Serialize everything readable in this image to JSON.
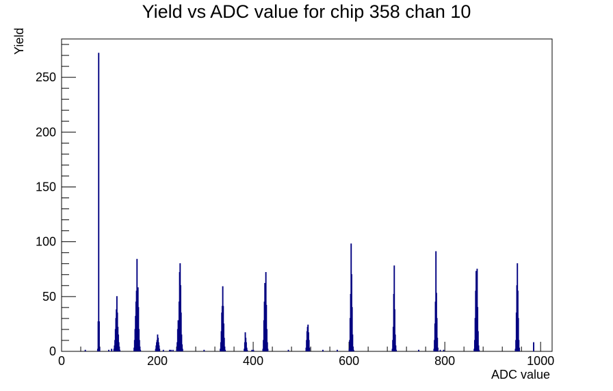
{
  "chart_data": {
    "type": "histogram",
    "title": "Yield vs ADC value for chip 358 chan 10",
    "xlabel": "ADC value",
    "ylabel": "Yield",
    "xlim": [
      0,
      1024
    ],
    "ylim": [
      0,
      285
    ],
    "x_ticks": [
      0,
      200,
      400,
      600,
      800,
      1000
    ],
    "y_ticks": [
      0,
      50,
      100,
      150,
      200,
      250
    ],
    "bin_width": 1,
    "grid": false,
    "line_color": "#000080",
    "bins": [
      {
        "x": 49,
        "y": 1
      },
      {
        "x": 75,
        "y": 2
      },
      {
        "x": 76,
        "y": 27
      },
      {
        "x": 77,
        "y": 272
      },
      {
        "x": 78,
        "y": 27
      },
      {
        "x": 79,
        "y": 3
      },
      {
        "x": 98,
        "y": 1
      },
      {
        "x": 104,
        "y": 2
      },
      {
        "x": 109,
        "y": 2
      },
      {
        "x": 110,
        "y": 5
      },
      {
        "x": 111,
        "y": 10
      },
      {
        "x": 112,
        "y": 20
      },
      {
        "x": 113,
        "y": 30
      },
      {
        "x": 114,
        "y": 38
      },
      {
        "x": 115,
        "y": 50
      },
      {
        "x": 116,
        "y": 35
      },
      {
        "x": 117,
        "y": 22
      },
      {
        "x": 118,
        "y": 15
      },
      {
        "x": 119,
        "y": 8
      },
      {
        "x": 120,
        "y": 4
      },
      {
        "x": 121,
        "y": 1
      },
      {
        "x": 151,
        "y": 3
      },
      {
        "x": 152,
        "y": 10
      },
      {
        "x": 153,
        "y": 20
      },
      {
        "x": 154,
        "y": 32
      },
      {
        "x": 155,
        "y": 45
      },
      {
        "x": 156,
        "y": 55
      },
      {
        "x": 157,
        "y": 84
      },
      {
        "x": 158,
        "y": 35
      },
      {
        "x": 159,
        "y": 58
      },
      {
        "x": 160,
        "y": 40
      },
      {
        "x": 161,
        "y": 20
      },
      {
        "x": 162,
        "y": 10
      },
      {
        "x": 163,
        "y": 4
      },
      {
        "x": 164,
        "y": 1
      },
      {
        "x": 196,
        "y": 2
      },
      {
        "x": 197,
        "y": 5
      },
      {
        "x": 198,
        "y": 8
      },
      {
        "x": 199,
        "y": 10
      },
      {
        "x": 200,
        "y": 15
      },
      {
        "x": 201,
        "y": 12
      },
      {
        "x": 202,
        "y": 8
      },
      {
        "x": 203,
        "y": 5
      },
      {
        "x": 204,
        "y": 2
      },
      {
        "x": 212,
        "y": 1
      },
      {
        "x": 225,
        "y": 1
      },
      {
        "x": 228,
        "y": 1
      },
      {
        "x": 232,
        "y": 1
      },
      {
        "x": 240,
        "y": 2
      },
      {
        "x": 241,
        "y": 8
      },
      {
        "x": 242,
        "y": 20
      },
      {
        "x": 243,
        "y": 28
      },
      {
        "x": 244,
        "y": 26
      },
      {
        "x": 245,
        "y": 45
      },
      {
        "x": 246,
        "y": 72
      },
      {
        "x": 247,
        "y": 80
      },
      {
        "x": 248,
        "y": 60
      },
      {
        "x": 249,
        "y": 35
      },
      {
        "x": 250,
        "y": 15
      },
      {
        "x": 251,
        "y": 6
      },
      {
        "x": 252,
        "y": 2
      },
      {
        "x": 297,
        "y": 1
      },
      {
        "x": 331,
        "y": 2
      },
      {
        "x": 332,
        "y": 8
      },
      {
        "x": 333,
        "y": 18
      },
      {
        "x": 334,
        "y": 35
      },
      {
        "x": 335,
        "y": 41
      },
      {
        "x": 336,
        "y": 59
      },
      {
        "x": 337,
        "y": 41
      },
      {
        "x": 338,
        "y": 25
      },
      {
        "x": 339,
        "y": 12
      },
      {
        "x": 340,
        "y": 4
      },
      {
        "x": 341,
        "y": 1
      },
      {
        "x": 381,
        "y": 2
      },
      {
        "x": 382,
        "y": 8
      },
      {
        "x": 383,
        "y": 17
      },
      {
        "x": 384,
        "y": 12
      },
      {
        "x": 385,
        "y": 8
      },
      {
        "x": 386,
        "y": 3
      },
      {
        "x": 387,
        "y": 1
      },
      {
        "x": 397,
        "y": 1
      },
      {
        "x": 400,
        "y": 1
      },
      {
        "x": 420,
        "y": 2
      },
      {
        "x": 421,
        "y": 10
      },
      {
        "x": 422,
        "y": 28
      },
      {
        "x": 423,
        "y": 45
      },
      {
        "x": 424,
        "y": 62
      },
      {
        "x": 425,
        "y": 50
      },
      {
        "x": 426,
        "y": 72
      },
      {
        "x": 427,
        "y": 42
      },
      {
        "x": 428,
        "y": 20
      },
      {
        "x": 429,
        "y": 8
      },
      {
        "x": 430,
        "y": 2
      },
      {
        "x": 473,
        "y": 1
      },
      {
        "x": 510,
        "y": 3
      },
      {
        "x": 511,
        "y": 10
      },
      {
        "x": 512,
        "y": 18
      },
      {
        "x": 513,
        "y": 22
      },
      {
        "x": 514,
        "y": 24
      },
      {
        "x": 515,
        "y": 17
      },
      {
        "x": 516,
        "y": 10
      },
      {
        "x": 517,
        "y": 3
      },
      {
        "x": 545,
        "y": 1
      },
      {
        "x": 575,
        "y": 1
      },
      {
        "x": 600,
        "y": 2
      },
      {
        "x": 601,
        "y": 10
      },
      {
        "x": 602,
        "y": 30
      },
      {
        "x": 603,
        "y": 52
      },
      {
        "x": 604,
        "y": 98
      },
      {
        "x": 605,
        "y": 70
      },
      {
        "x": 606,
        "y": 40
      },
      {
        "x": 607,
        "y": 15
      },
      {
        "x": 608,
        "y": 4
      },
      {
        "x": 609,
        "y": 1
      },
      {
        "x": 690,
        "y": 2
      },
      {
        "x": 691,
        "y": 10
      },
      {
        "x": 692,
        "y": 22
      },
      {
        "x": 693,
        "y": 52
      },
      {
        "x": 694,
        "y": 78
      },
      {
        "x": 695,
        "y": 38
      },
      {
        "x": 696,
        "y": 15
      },
      {
        "x": 697,
        "y": 5
      },
      {
        "x": 698,
        "y": 1
      },
      {
        "x": 745,
        "y": 1
      },
      {
        "x": 777,
        "y": 2
      },
      {
        "x": 778,
        "y": 10
      },
      {
        "x": 779,
        "y": 25
      },
      {
        "x": 780,
        "y": 45
      },
      {
        "x": 781,
        "y": 91
      },
      {
        "x": 782,
        "y": 53
      },
      {
        "x": 783,
        "y": 30
      },
      {
        "x": 784,
        "y": 12
      },
      {
        "x": 785,
        "y": 3
      },
      {
        "x": 790,
        "y": 1
      },
      {
        "x": 797,
        "y": 1
      },
      {
        "x": 861,
        "y": 2
      },
      {
        "x": 862,
        "y": 10
      },
      {
        "x": 863,
        "y": 30
      },
      {
        "x": 864,
        "y": 55
      },
      {
        "x": 865,
        "y": 73
      },
      {
        "x": 866,
        "y": 60
      },
      {
        "x": 867,
        "y": 75
      },
      {
        "x": 868,
        "y": 40
      },
      {
        "x": 869,
        "y": 18
      },
      {
        "x": 870,
        "y": 5
      },
      {
        "x": 871,
        "y": 1
      },
      {
        "x": 947,
        "y": 2
      },
      {
        "x": 948,
        "y": 10
      },
      {
        "x": 949,
        "y": 35
      },
      {
        "x": 950,
        "y": 60
      },
      {
        "x": 951,
        "y": 80
      },
      {
        "x": 952,
        "y": 55
      },
      {
        "x": 953,
        "y": 30
      },
      {
        "x": 954,
        "y": 10
      },
      {
        "x": 955,
        "y": 3
      },
      {
        "x": 985,
        "y": 8
      }
    ]
  }
}
